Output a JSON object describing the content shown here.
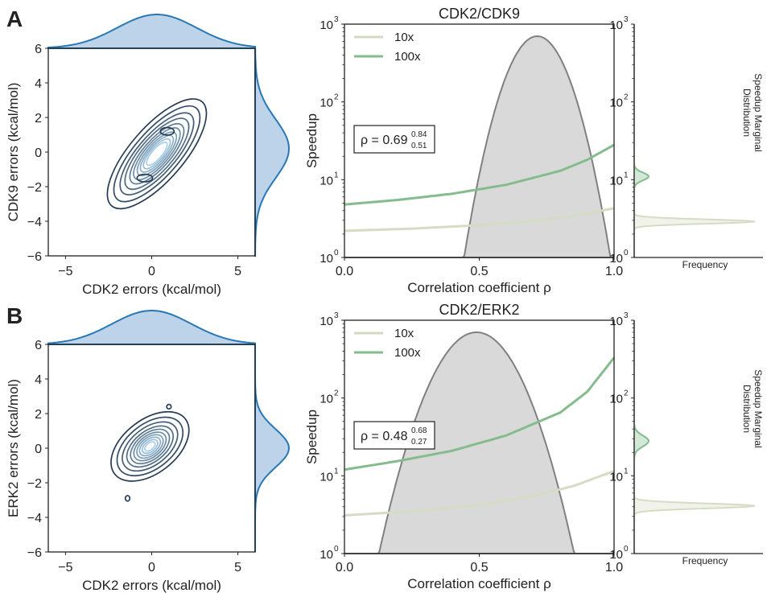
{
  "colors": {
    "kde_line": "#2878b5",
    "kde_fill": "#bcd3ea",
    "contour_dark": "#263c55",
    "contour_light": "#a8cfe8",
    "peak_fill": "#d9d9d9",
    "peak_line": "#808080",
    "line_10x": "#d6dcc4",
    "line_100x": "#84bc8e"
  },
  "panels": [
    {
      "label": "A",
      "scatter": {
        "xlabel": "CDK2 errors (kcal/mol)",
        "ylabel": "CDK9 errors (kcal/mol)",
        "xlim": [
          -6,
          6
        ],
        "ylim": [
          -6,
          6
        ],
        "xticks": [
          -5,
          0,
          5
        ],
        "yticks": [
          -6,
          -4,
          -2,
          0,
          2,
          4,
          6
        ],
        "x_marginal": {
          "mean": 0.3,
          "sd": 2.3
        },
        "y_marginal": {
          "mean": 0.2,
          "sd": 1.7
        },
        "contours": {
          "cx": 0.3,
          "cy": -0.1,
          "rot_deg": 49,
          "axes": [
            [
              4.0,
              1.55
            ],
            [
              3.5,
              1.3
            ],
            [
              3.0,
              1.1
            ],
            [
              2.6,
              0.95
            ],
            [
              2.2,
              0.8
            ],
            [
              1.9,
              0.68
            ],
            [
              1.6,
              0.57
            ],
            [
              1.35,
              0.47
            ],
            [
              1.1,
              0.38
            ],
            [
              0.85,
              0.29
            ]
          ],
          "islands": [
            {
              "x": 0.9,
              "y": 1.2,
              "a": 0.4,
              "b": 0.22
            },
            {
              "x": -0.4,
              "y": -1.5,
              "a": 0.45,
              "b": 0.22
            }
          ]
        }
      },
      "speedup": {
        "title": "CDK2/CDK9",
        "xlabel": "Correlation coefficient ρ",
        "ylabel": "Speedup",
        "xlim": [
          0,
          1
        ],
        "ylim": [
          1,
          1000
        ],
        "xticks": [
          "0.0",
          "0.5",
          "1.0"
        ],
        "yticks": [
          {
            "base": "10",
            "exp": "0"
          },
          {
            "base": "10",
            "exp": "1"
          },
          {
            "base": "10",
            "exp": "2"
          },
          {
            "base": "10",
            "exp": "3"
          }
        ],
        "legend": [
          "10x",
          "100x"
        ],
        "rho_box": {
          "prefix": "ρ = ",
          "value": "0.69",
          "upper": "0.84",
          "lower": "0.51"
        },
        "peak": {
          "mean": 0.715,
          "sd": 0.075,
          "height": 700
        },
        "series": [
          {
            "name": "10x",
            "x": [
              0,
              0.25,
              0.5,
              0.7,
              0.85,
              1.0
            ],
            "y": [
              2.2,
              2.35,
              2.6,
              2.95,
              3.4,
              4.3
            ]
          },
          {
            "name": "100x",
            "x": [
              0,
              0.2,
              0.4,
              0.6,
              0.8,
              0.9,
              1.0
            ],
            "y": [
              4.8,
              5.5,
              6.6,
              8.6,
              13.0,
              18.0,
              28.0
            ]
          }
        ]
      },
      "marginal": {
        "label": "Frequency",
        "ylabel_lines": [
          "Speedup Marginal",
          "Distribution"
        ],
        "peaks": [
          {
            "name": "100x",
            "center": 11,
            "sigma": 0.05,
            "amp": 0.12
          },
          {
            "name": "10x",
            "center": 2.9,
            "sigma": 0.028,
            "amp": 1.0
          }
        ]
      }
    },
    {
      "label": "B",
      "scatter": {
        "xlabel": "CDK2 errors (kcal/mol)",
        "ylabel": "ERK2 errors (kcal/mol)",
        "xlim": [
          -6,
          6
        ],
        "ylim": [
          -6,
          6
        ],
        "xticks": [
          -5,
          0,
          5
        ],
        "yticks": [
          -6,
          -4,
          -2,
          0,
          2,
          4,
          6
        ],
        "x_marginal": {
          "mean": 0.0,
          "sd": 2.3
        },
        "y_marginal": {
          "mean": 0.0,
          "sd": 1.1
        },
        "contours": {
          "cx": -0.1,
          "cy": 0.1,
          "rot_deg": 38,
          "axes": [
            [
              2.6,
              1.55
            ],
            [
              2.2,
              1.3
            ],
            [
              1.85,
              1.08
            ],
            [
              1.55,
              0.9
            ],
            [
              1.3,
              0.76
            ],
            [
              1.08,
              0.63
            ],
            [
              0.88,
              0.52
            ],
            [
              0.7,
              0.41
            ],
            [
              0.52,
              0.3
            ],
            [
              0.35,
              0.2
            ]
          ],
          "islands": [
            {
              "x": 1.0,
              "y": 2.4,
              "a": 0.13,
              "b": 0.13
            },
            {
              "x": -1.4,
              "y": -2.9,
              "a": 0.13,
              "b": 0.16
            }
          ]
        }
      },
      "speedup": {
        "title": "CDK2/ERK2",
        "xlabel": "Correlation coefficient ρ",
        "ylabel": "Speedup",
        "xlim": [
          0,
          1
        ],
        "ylim": [
          1,
          1000
        ],
        "xticks": [
          "0.0",
          "0.5",
          "1.0"
        ],
        "yticks": [
          {
            "base": "10",
            "exp": "0"
          },
          {
            "base": "10",
            "exp": "1"
          },
          {
            "base": "10",
            "exp": "2"
          },
          {
            "base": "10",
            "exp": "3"
          }
        ],
        "legend": [
          "10x",
          "100x"
        ],
        "rho_box": {
          "prefix": "ρ = ",
          "value": "0.48",
          "upper": "0.68",
          "lower": "0.27"
        },
        "peak": {
          "mean": 0.49,
          "sd": 0.1,
          "height": 700
        },
        "series": [
          {
            "name": "10x",
            "x": [
              0,
              0.25,
              0.5,
              0.7,
              0.85,
              1.0
            ],
            "y": [
              3.1,
              3.5,
              4.2,
              5.5,
              7.4,
              11.5
            ]
          },
          {
            "name": "100x",
            "x": [
              0,
              0.2,
              0.4,
              0.6,
              0.8,
              0.9,
              1.0
            ],
            "y": [
              12,
              15.5,
              21,
              33,
              65,
              120,
              330
            ]
          }
        ]
      },
      "marginal": {
        "label": "Frequency",
        "ylabel_lines": [
          "Speedup Marginal",
          "Distribution"
        ],
        "peaks": [
          {
            "name": "100x",
            "center": 28,
            "sigma": 0.07,
            "amp": 0.12
          },
          {
            "name": "10x",
            "center": 4.1,
            "sigma": 0.032,
            "amp": 1.0
          }
        ]
      }
    }
  ]
}
